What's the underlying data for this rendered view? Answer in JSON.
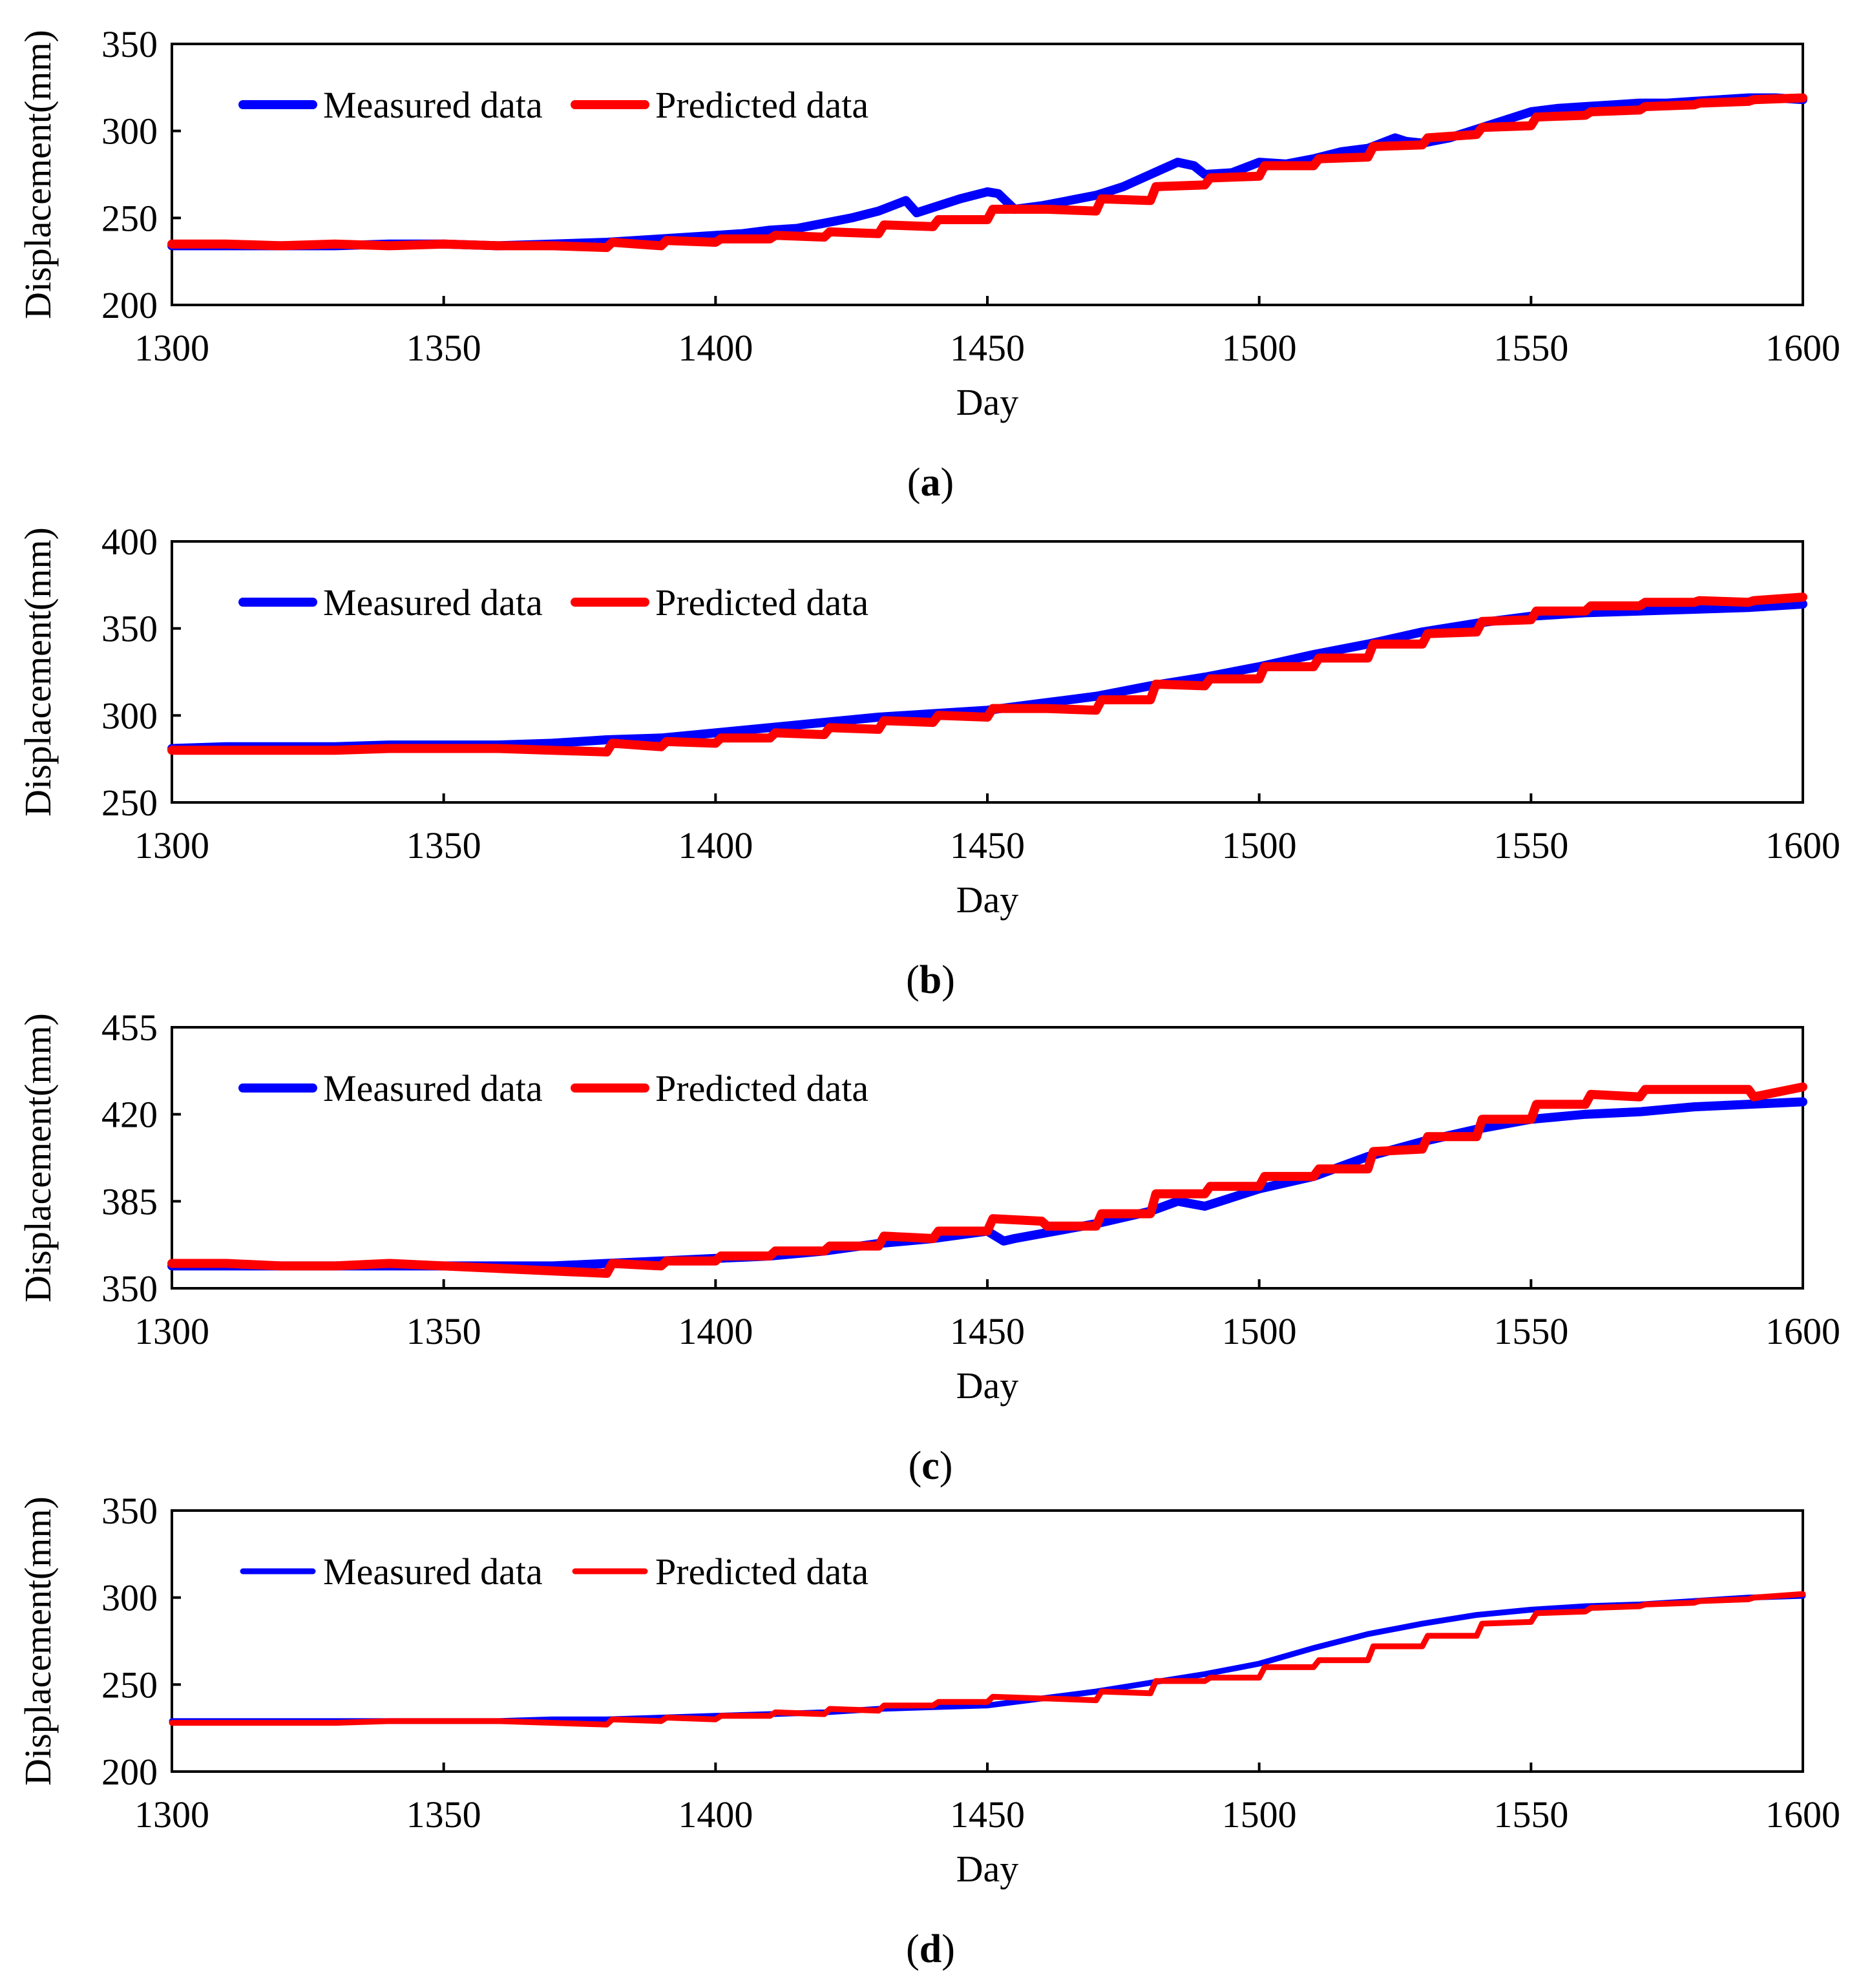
{
  "figure": {
    "panels_count": 4
  },
  "chart_data": [
    {
      "type": "line",
      "panel_label": "a",
      "xlabel": "Day",
      "ylabel": "Displacement(mm)",
      "xlim": [
        1300,
        1600
      ],
      "ylim": [
        200,
        350
      ],
      "xticks": [
        1300,
        1350,
        1400,
        1450,
        1500,
        1550,
        1600
      ],
      "yticks": [
        200,
        250,
        300,
        350
      ],
      "legend_position": "top-left",
      "series": [
        {
          "name": "Measured data",
          "color": "#0000ff",
          "x": [
            1300,
            1310,
            1320,
            1330,
            1340,
            1350,
            1360,
            1370,
            1380,
            1390,
            1400,
            1405,
            1410,
            1415,
            1420,
            1425,
            1430,
            1435,
            1437,
            1440,
            1445,
            1450,
            1452,
            1455,
            1460,
            1465,
            1470,
            1475,
            1480,
            1485,
            1488,
            1490,
            1495,
            1500,
            1505,
            1510,
            1515,
            1520,
            1525,
            1527,
            1530,
            1535,
            1540,
            1545,
            1550,
            1555,
            1560,
            1565,
            1570,
            1575,
            1580,
            1585,
            1590,
            1595,
            1600
          ],
          "values": [
            234,
            234,
            234,
            234,
            235,
            235,
            234,
            235,
            236,
            238,
            240,
            241,
            243,
            244,
            247,
            250,
            254,
            260,
            253,
            256,
            261,
            265,
            264,
            255,
            257,
            260,
            263,
            268,
            275,
            282,
            280,
            275,
            276,
            282,
            281,
            284,
            288,
            290,
            296,
            294,
            293,
            296,
            301,
            306,
            311,
            313,
            314,
            315,
            316,
            316,
            317,
            318,
            319,
            319,
            318
          ]
        },
        {
          "name": "Predicted data",
          "color": "#ff0000",
          "x": [
            1300,
            1310,
            1320,
            1330,
            1340,
            1350,
            1360,
            1370,
            1380,
            1381,
            1390,
            1391,
            1400,
            1401,
            1410,
            1411,
            1420,
            1421,
            1430,
            1431,
            1440,
            1441,
            1450,
            1451,
            1460,
            1461,
            1470,
            1471,
            1480,
            1481,
            1490,
            1491,
            1500,
            1501,
            1510,
            1511,
            1520,
            1521,
            1530,
            1531,
            1540,
            1541,
            1550,
            1551,
            1560,
            1561,
            1570,
            1571,
            1580,
            1581,
            1590,
            1591,
            1600
          ],
          "values": [
            235,
            235,
            234,
            235,
            234,
            235,
            234,
            234,
            233,
            236,
            234,
            237,
            236,
            238,
            238,
            240,
            239,
            242,
            241,
            246,
            245,
            249,
            249,
            255,
            255,
            255,
            254,
            261,
            260,
            268,
            269,
            273,
            274,
            280,
            280,
            284,
            285,
            291,
            292,
            296,
            298,
            302,
            303,
            308,
            309,
            311,
            312,
            314,
            315,
            316,
            317,
            318,
            319
          ]
        }
      ]
    },
    {
      "type": "line",
      "panel_label": "b",
      "xlabel": "Day",
      "ylabel": "Displacement(mm)",
      "xlim": [
        1300,
        1600
      ],
      "ylim": [
        250,
        400
      ],
      "xticks": [
        1300,
        1350,
        1400,
        1450,
        1500,
        1550,
        1600
      ],
      "yticks": [
        250,
        300,
        350,
        400
      ],
      "legend_position": "top-left",
      "series": [
        {
          "name": "Measured data",
          "color": "#0000ff",
          "x": [
            1300,
            1310,
            1320,
            1330,
            1340,
            1350,
            1360,
            1370,
            1380,
            1390,
            1400,
            1410,
            1420,
            1430,
            1440,
            1450,
            1460,
            1470,
            1480,
            1490,
            1500,
            1510,
            1520,
            1530,
            1540,
            1550,
            1560,
            1570,
            1580,
            1590,
            1600
          ],
          "values": [
            281,
            282,
            282,
            282,
            283,
            283,
            283,
            284,
            286,
            287,
            290,
            293,
            296,
            299,
            301,
            303,
            307,
            311,
            317,
            322,
            328,
            335,
            341,
            348,
            353,
            357,
            359,
            360,
            361,
            362,
            364
          ]
        },
        {
          "name": "Predicted data",
          "color": "#ff0000",
          "x": [
            1300,
            1310,
            1320,
            1330,
            1340,
            1350,
            1360,
            1370,
            1380,
            1381,
            1390,
            1391,
            1400,
            1401,
            1410,
            1411,
            1420,
            1421,
            1430,
            1431,
            1440,
            1441,
            1450,
            1451,
            1460,
            1461,
            1470,
            1471,
            1480,
            1481,
            1490,
            1491,
            1500,
            1501,
            1510,
            1511,
            1520,
            1521,
            1530,
            1531,
            1540,
            1541,
            1550,
            1551,
            1560,
            1561,
            1570,
            1571,
            1580,
            1581,
            1590,
            1591,
            1600
          ],
          "values": [
            280,
            280,
            280,
            280,
            281,
            281,
            281,
            280,
            279,
            284,
            282,
            285,
            284,
            287,
            287,
            290,
            289,
            293,
            292,
            297,
            296,
            300,
            299,
            304,
            304,
            304,
            303,
            309,
            309,
            318,
            317,
            321,
            321,
            328,
            328,
            333,
            333,
            341,
            341,
            347,
            348,
            354,
            355,
            360,
            360,
            363,
            363,
            365,
            365,
            366,
            365,
            366,
            368
          ]
        }
      ]
    },
    {
      "type": "line",
      "panel_label": "c",
      "xlabel": "Day",
      "ylabel": "Displacement(mm)",
      "xlim": [
        1300,
        1600
      ],
      "ylim": [
        350,
        455
      ],
      "xticks": [
        1300,
        1350,
        1400,
        1450,
        1500,
        1550,
        1600
      ],
      "yticks": [
        350,
        385,
        420,
        455
      ],
      "legend_position": "top-left",
      "series": [
        {
          "name": "Measured data",
          "color": "#0000ff",
          "x": [
            1300,
            1310,
            1320,
            1330,
            1340,
            1350,
            1360,
            1370,
            1380,
            1390,
            1400,
            1410,
            1420,
            1430,
            1440,
            1450,
            1453,
            1455,
            1460,
            1470,
            1480,
            1485,
            1490,
            1500,
            1510,
            1520,
            1530,
            1540,
            1550,
            1560,
            1570,
            1580,
            1590,
            1600
          ],
          "values": [
            359,
            359,
            359,
            359,
            359,
            359,
            359,
            359,
            360,
            361,
            362,
            363,
            365,
            368,
            370,
            373,
            369,
            370,
            372,
            376,
            381,
            385,
            383,
            390,
            395,
            403,
            409,
            414,
            418,
            420,
            421,
            423,
            424,
            425
          ]
        },
        {
          "name": "Predicted data",
          "color": "#ff0000",
          "x": [
            1300,
            1310,
            1320,
            1330,
            1340,
            1350,
            1360,
            1370,
            1380,
            1381,
            1390,
            1391,
            1400,
            1401,
            1410,
            1411,
            1420,
            1421,
            1430,
            1431,
            1440,
            1441,
            1450,
            1451,
            1460,
            1461,
            1470,
            1471,
            1480,
            1481,
            1490,
            1491,
            1500,
            1501,
            1510,
            1511,
            1520,
            1521,
            1530,
            1531,
            1540,
            1541,
            1550,
            1551,
            1560,
            1561,
            1570,
            1571,
            1580,
            1581,
            1590,
            1591,
            1600
          ],
          "values": [
            360,
            360,
            359,
            359,
            360,
            359,
            358,
            357,
            356,
            360,
            359,
            361,
            361,
            363,
            363,
            365,
            365,
            367,
            367,
            371,
            370,
            373,
            373,
            378,
            377,
            375,
            375,
            380,
            380,
            388,
            388,
            391,
            391,
            395,
            395,
            398,
            398,
            405,
            406,
            411,
            411,
            418,
            418,
            424,
            424,
            428,
            427,
            430,
            430,
            430,
            430,
            427,
            431
          ]
        }
      ]
    },
    {
      "type": "line",
      "panel_label": "d",
      "xlabel": "Day",
      "ylabel": "Displacement(mm)",
      "xlim": [
        1300,
        1600
      ],
      "ylim": [
        200,
        350
      ],
      "xticks": [
        1300,
        1350,
        1400,
        1450,
        1500,
        1550,
        1600
      ],
      "yticks": [
        200,
        250,
        300,
        350
      ],
      "legend_position": "top-left",
      "series": [
        {
          "name": "Measured data",
          "color": "#0000ff",
          "x": [
            1300,
            1310,
            1320,
            1330,
            1340,
            1350,
            1360,
            1370,
            1380,
            1390,
            1400,
            1410,
            1420,
            1430,
            1440,
            1450,
            1460,
            1470,
            1480,
            1490,
            1500,
            1510,
            1520,
            1530,
            1540,
            1550,
            1560,
            1570,
            1580,
            1590,
            1600
          ],
          "values": [
            229,
            229,
            229,
            229,
            229,
            229,
            229,
            230,
            230,
            231,
            232,
            233,
            234,
            236,
            237,
            238,
            242,
            246,
            251,
            256,
            262,
            271,
            279,
            285,
            290,
            293,
            295,
            296,
            298,
            300,
            301
          ]
        },
        {
          "name": "Predicted data",
          "color": "#ff0000",
          "x": [
            1300,
            1310,
            1320,
            1330,
            1340,
            1350,
            1360,
            1370,
            1380,
            1381,
            1390,
            1391,
            1400,
            1401,
            1410,
            1411,
            1420,
            1421,
            1430,
            1431,
            1440,
            1441,
            1450,
            1451,
            1460,
            1461,
            1470,
            1471,
            1480,
            1481,
            1490,
            1491,
            1500,
            1501,
            1510,
            1511,
            1520,
            1521,
            1530,
            1531,
            1540,
            1541,
            1550,
            1551,
            1560,
            1561,
            1570,
            1571,
            1580,
            1581,
            1590,
            1591,
            1600
          ],
          "values": [
            228,
            228,
            228,
            228,
            229,
            229,
            229,
            228,
            227,
            230,
            229,
            231,
            230,
            232,
            232,
            234,
            233,
            236,
            235,
            238,
            238,
            240,
            240,
            243,
            242,
            242,
            241,
            246,
            245,
            252,
            252,
            254,
            254,
            260,
            260,
            264,
            264,
            272,
            272,
            278,
            278,
            285,
            286,
            291,
            292,
            294,
            295,
            296,
            297,
            298,
            299,
            300,
            302
          ]
        }
      ]
    }
  ]
}
